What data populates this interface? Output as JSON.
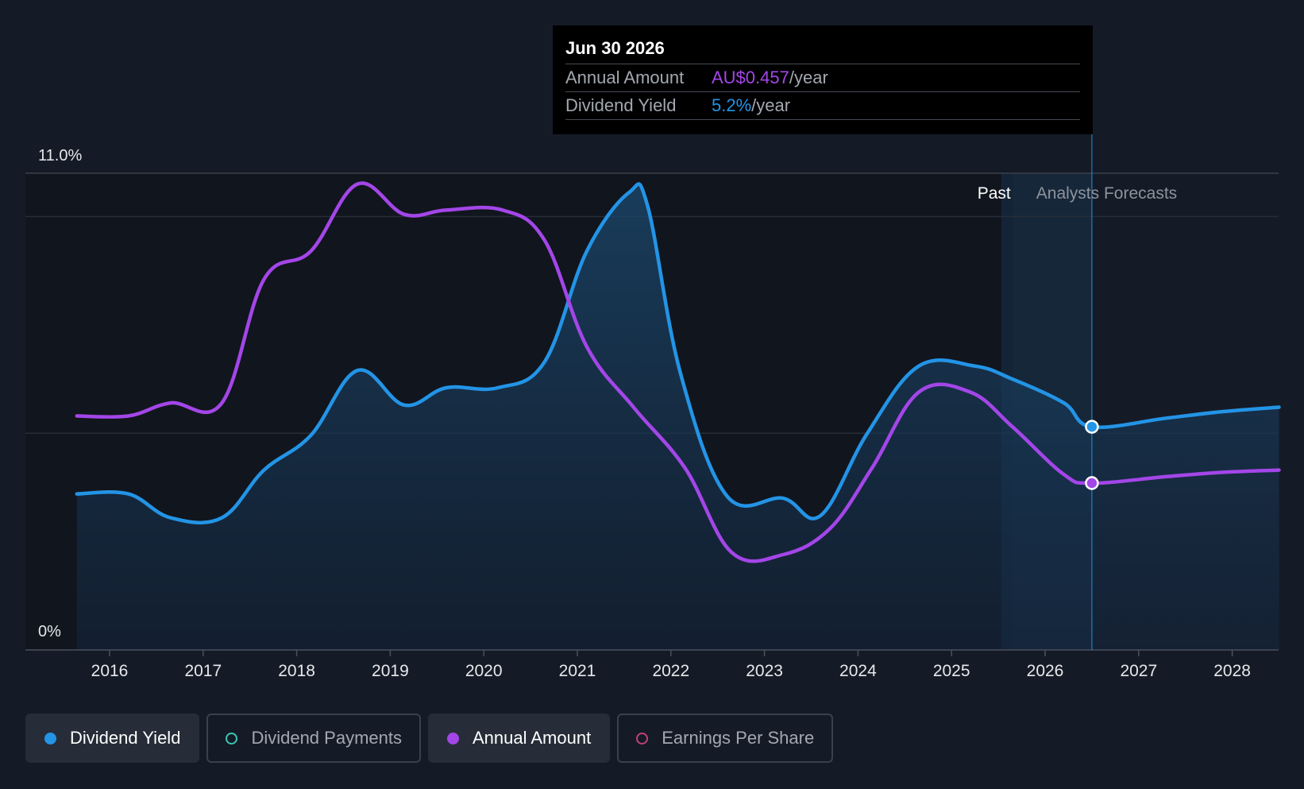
{
  "chart_data": {
    "type": "line",
    "y_axis": {
      "top_label": "11.0%",
      "bottom_label": "0%",
      "ylim": [
        0,
        11.0
      ]
    },
    "x_ticks": [
      "2016",
      "2017",
      "2018",
      "2019",
      "2020",
      "2021",
      "2022",
      "2023",
      "2024",
      "2025",
      "2026",
      "2027",
      "2028"
    ],
    "period_labels": {
      "past": "Past",
      "forecast": "Analysts Forecasts"
    },
    "forecast_start_year": 2025.65,
    "series": [
      {
        "name": "Dividend Yield",
        "color": "#2394e6",
        "filled": true,
        "points": [
          [
            2015.65,
            3.6
          ],
          [
            2016.2,
            3.6
          ],
          [
            2016.65,
            3.05
          ],
          [
            2017.2,
            3.05
          ],
          [
            2017.65,
            4.15
          ],
          [
            2018.15,
            4.95
          ],
          [
            2018.65,
            6.45
          ],
          [
            2019.15,
            5.65
          ],
          [
            2019.6,
            6.05
          ],
          [
            2020.15,
            6.05
          ],
          [
            2020.65,
            6.65
          ],
          [
            2021.1,
            9.2
          ],
          [
            2021.55,
            10.55
          ],
          [
            2021.75,
            10.25
          ],
          [
            2022.1,
            6.4
          ],
          [
            2022.6,
            3.55
          ],
          [
            2023.2,
            3.5
          ],
          [
            2023.6,
            3.1
          ],
          [
            2024.1,
            5.0
          ],
          [
            2024.65,
            6.55
          ],
          [
            2025.25,
            6.55
          ],
          [
            2025.65,
            6.25
          ],
          [
            2026.2,
            5.7
          ],
          [
            2026.5,
            5.15
          ],
          [
            2027.3,
            5.35
          ],
          [
            2027.9,
            5.5
          ],
          [
            2028.5,
            5.6
          ]
        ]
      },
      {
        "name": "Annual Amount",
        "color": "#a346e8",
        "filled": false,
        "points": [
          [
            2015.65,
            5.4
          ],
          [
            2016.2,
            5.4
          ],
          [
            2016.65,
            5.7
          ],
          [
            2017.2,
            5.7
          ],
          [
            2017.65,
            8.55
          ],
          [
            2018.15,
            9.2
          ],
          [
            2018.65,
            10.75
          ],
          [
            2019.15,
            10.05
          ],
          [
            2019.6,
            10.15
          ],
          [
            2020.2,
            10.15
          ],
          [
            2020.65,
            9.45
          ],
          [
            2021.1,
            7.0
          ],
          [
            2021.6,
            5.6
          ],
          [
            2022.15,
            4.2
          ],
          [
            2022.65,
            2.25
          ],
          [
            2023.2,
            2.2
          ],
          [
            2023.7,
            2.8
          ],
          [
            2024.15,
            4.2
          ],
          [
            2024.65,
            5.95
          ],
          [
            2025.2,
            5.95
          ],
          [
            2025.65,
            5.15
          ],
          [
            2026.2,
            4.05
          ],
          [
            2026.5,
            3.85
          ],
          [
            2027.3,
            4.0
          ],
          [
            2027.9,
            4.1
          ],
          [
            2028.5,
            4.15
          ]
        ]
      }
    ],
    "highlight": {
      "x": 2026.5,
      "date": "Jun 30 2026",
      "rows": [
        {
          "label": "Annual Amount",
          "value": "AU$0.457",
          "unit": "/year",
          "color": "#a346e8"
        },
        {
          "label": "Dividend Yield",
          "value": "5.2%",
          "unit": "/year",
          "color": "#2394e6"
        }
      ]
    }
  },
  "legend": [
    {
      "label": "Dividend Yield",
      "active": true,
      "dot_color": "#2394e6",
      "dot_style": "filled"
    },
    {
      "label": "Dividend Payments",
      "active": false,
      "dot_color": "#3ec6b4",
      "dot_style": "hollow"
    },
    {
      "label": "Annual Amount",
      "active": true,
      "dot_color": "#a346e8",
      "dot_style": "filled"
    },
    {
      "label": "Earnings Per Share",
      "active": false,
      "dot_color": "#c0407a",
      "dot_style": "hollow"
    }
  ]
}
